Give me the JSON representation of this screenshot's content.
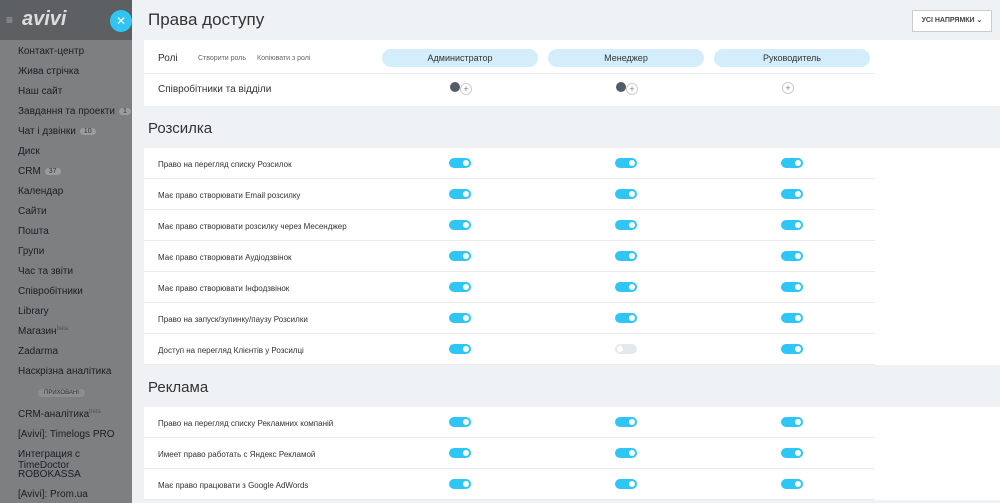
{
  "sidebar": {
    "logo": "avivi",
    "items": [
      {
        "label": "Контакт-центр"
      },
      {
        "label": "Жива стрічка"
      },
      {
        "label": "Наш сайт"
      },
      {
        "label": "Завдання та проекти",
        "badge": "1"
      },
      {
        "label": "Чат і дзвінки",
        "badge": "10"
      },
      {
        "label": "Диск"
      },
      {
        "label": "CRM",
        "badge": "37"
      },
      {
        "label": "Календар"
      },
      {
        "label": "Сайти"
      },
      {
        "label": "Пошта"
      },
      {
        "label": "Групи"
      },
      {
        "label": "Час та звіти"
      },
      {
        "label": "Співробітники"
      },
      {
        "label": "Library"
      },
      {
        "label": "Магазин",
        "sup": "beta"
      },
      {
        "label": "Zadarma"
      },
      {
        "label": "Наскрізна аналітика"
      }
    ],
    "hidden_label": "ПРИХОВАНІ",
    "hidden_items": [
      {
        "label": "CRM-аналітика",
        "sup": "beta"
      },
      {
        "label": "[Avivi]: Timelogs PRO"
      },
      {
        "label": "Интеграция с TimeDoctor"
      },
      {
        "label": "ROBOKASSA"
      },
      {
        "label": "[Avivi]: Prom.ua"
      }
    ]
  },
  "header": {
    "title": "Права доступу",
    "button": "УСІ НАПРЯМКИ"
  },
  "roles": {
    "label": "Ролі",
    "create": "Створити роль",
    "copy": "Копіювати з ролі",
    "names": [
      "Администратор",
      "Менеджер",
      "Руководитель"
    ],
    "employees_label": "Співробітники та відділи"
  },
  "sections": [
    {
      "title": "Розсилка",
      "rows": [
        {
          "label": "Право на перегляд списку Розсилок",
          "toggles": [
            true,
            true,
            true
          ]
        },
        {
          "label": "Має право створювати Email розсилку",
          "toggles": [
            true,
            true,
            true
          ]
        },
        {
          "label": "Має право створювати розсилку через Месенджер",
          "toggles": [
            true,
            true,
            true
          ]
        },
        {
          "label": "Має право створювати Аудіодзвінок",
          "toggles": [
            true,
            true,
            true
          ]
        },
        {
          "label": "Має право створювати Інфодзвінок",
          "toggles": [
            true,
            true,
            true
          ]
        },
        {
          "label": "Право на запуск/зупинку/паузу Розсилки",
          "toggles": [
            true,
            true,
            true
          ]
        },
        {
          "label": "Доступ на перегляд Клієнтів у Розсилці",
          "toggles": [
            true,
            false,
            true
          ]
        }
      ]
    },
    {
      "title": "Реклама",
      "rows": [
        {
          "label": "Право на перегляд списку Рекламних компаній",
          "toggles": [
            true,
            true,
            true
          ]
        },
        {
          "label": "Имеет право работать с Яндекс Рекламой",
          "toggles": [
            true,
            true,
            true
          ]
        },
        {
          "label": "Має право працювати з Google AdWords",
          "toggles": [
            true,
            true,
            true
          ]
        }
      ]
    }
  ]
}
